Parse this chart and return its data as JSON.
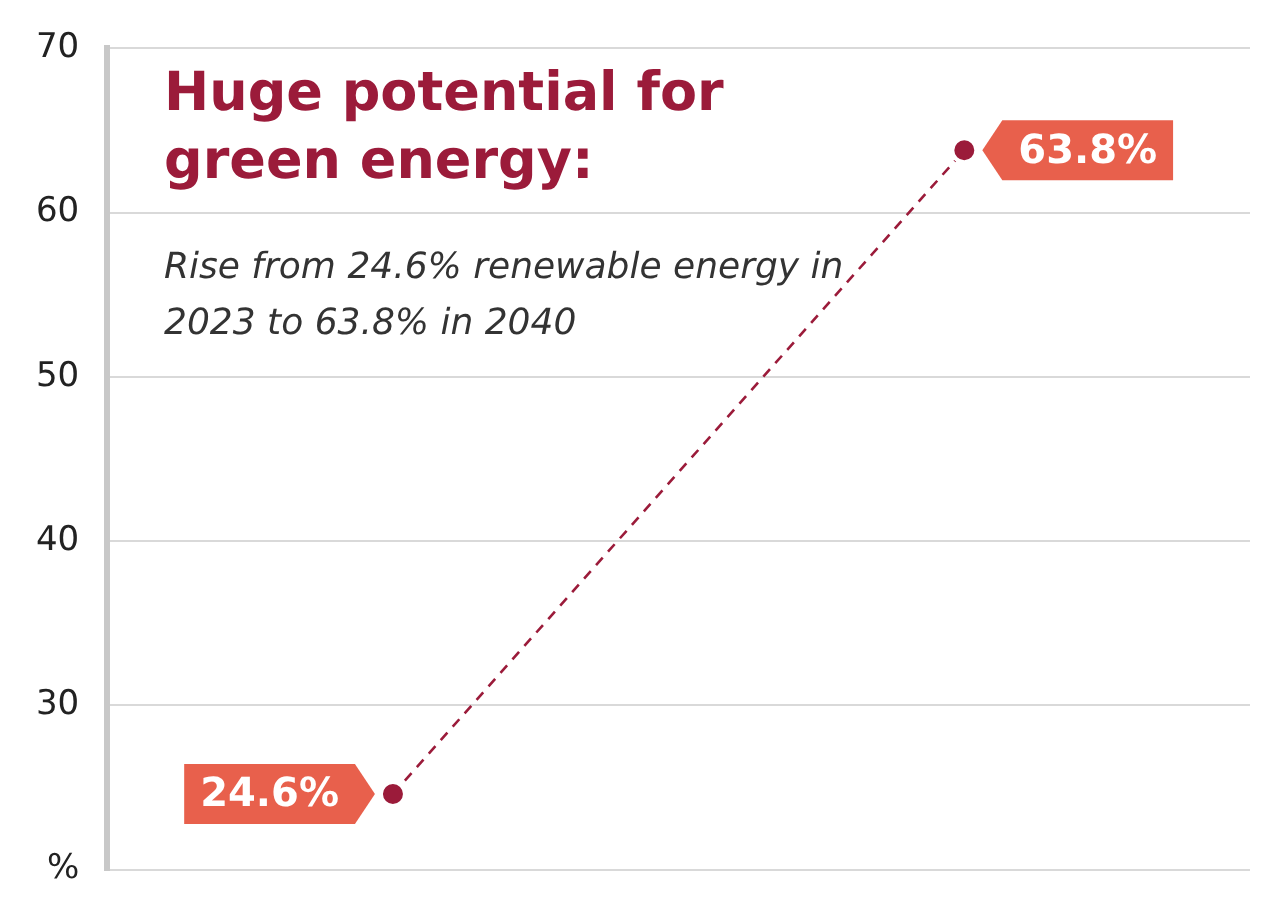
{
  "chart_data": {
    "type": "line",
    "title": "Huge potential for green energy:",
    "subtitle": "Rise from 24.6% renewable energy in 2023 to 63.8% in 2040",
    "categories": [
      null,
      null
    ],
    "series": [
      {
        "color": "#9b1b3a",
        "values": [
          24.6,
          63.8
        ],
        "value_labels": [
          "24.6%",
          "63.8%"
        ]
      }
    ],
    "ylim": [
      20,
      70
    ],
    "yticks": [
      {
        "value": 20,
        "label": "%"
      },
      30,
      40,
      50,
      60,
      70
    ],
    "grid": "y",
    "marker": "circle",
    "line_style": "dashed"
  }
}
